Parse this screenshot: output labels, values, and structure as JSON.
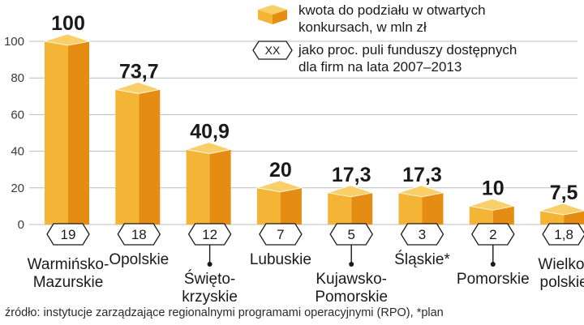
{
  "chart_data": {
    "type": "bar",
    "categories": [
      [
        "Warmińsko-",
        "Mazurskie"
      ],
      [
        "Opolskie"
      ],
      [
        "Święto-",
        "krzyskie"
      ],
      [
        "Lubuskie"
      ],
      [
        "Kujawsko-",
        "Pomorskie"
      ],
      [
        "Śląskie*"
      ],
      [
        "Pomorskie"
      ],
      [
        "Wielko-",
        "polskie"
      ]
    ],
    "values": [
      100,
      73.7,
      40.9,
      20,
      17.3,
      17.3,
      10,
      7.5
    ],
    "value_labels": [
      "100",
      "73,7",
      "40,9",
      "20",
      "17,3",
      "17,3",
      "10",
      "7,5"
    ],
    "percent_labels": [
      "19",
      "18",
      "12",
      "7",
      "5",
      "3",
      "2",
      "1,8"
    ],
    "y_ticks": [
      "0",
      "20",
      "40",
      "60",
      "80",
      "100"
    ],
    "ylim": [
      0,
      100
    ],
    "grid": true,
    "legend": {
      "placement": "top-right",
      "entries": [
        {
          "marker": "cube",
          "text": [
            "kwota do podziału w otwartych",
            "konkursach, w mln zł"
          ]
        },
        {
          "marker": "XX",
          "text": [
            "jako proc. puli funduszy dostępnych",
            "dla firm na lata 2007–2013"
          ]
        }
      ]
    },
    "colors": {
      "bar_front": "#f4b436",
      "bar_side": "#e58d12",
      "bar_top": "#f9cf69",
      "grid": "#bdbdbd",
      "text": "#1a1a1a"
    }
  },
  "source": "źródło: instytucje zarządzające regionalnymi programami operacyjnymi (RPO), *plan"
}
